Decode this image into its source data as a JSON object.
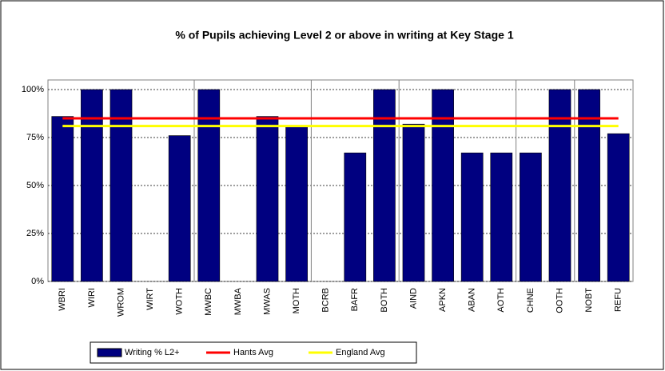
{
  "chart_data": {
    "type": "bar",
    "title": "% of Pupils achieving Level 2 or above in writing at Key Stage 1",
    "categories": [
      "WBRI",
      "WIRI",
      "WROM",
      "WIRT",
      "WOTH",
      "MWBC",
      "MWBA",
      "MWAS",
      "MOTH",
      "BCRB",
      "BAFR",
      "BOTH",
      "AIND",
      "APKN",
      "ABAN",
      "AOTH",
      "CHNE",
      "OOTH",
      "NOBT",
      "REFU"
    ],
    "series": [
      {
        "name": "Writing % L2+",
        "type": "bar",
        "color": "#000080",
        "values": [
          86,
          100,
          100,
          0,
          76,
          100,
          0,
          86,
          81,
          0,
          67,
          100,
          82,
          100,
          67,
          67,
          67,
          100,
          100,
          77
        ]
      },
      {
        "name": "Hants Avg",
        "type": "line",
        "color": "#ff0000",
        "values": [
          85,
          85,
          85,
          85,
          85,
          85,
          85,
          85,
          85,
          85,
          85,
          85,
          85,
          85,
          85,
          85,
          85,
          85,
          85,
          85
        ]
      },
      {
        "name": "England Avg",
        "type": "line",
        "color": "#ffff00",
        "values": [
          81,
          81,
          81,
          81,
          81,
          81,
          81,
          81,
          81,
          81,
          81,
          81,
          81,
          81,
          81,
          81,
          81,
          81,
          81,
          81
        ]
      }
    ],
    "ylim": [
      0,
      100
    ],
    "yticks": [
      {
        "value": 0,
        "label": "0%"
      },
      {
        "value": 25,
        "label": "25%"
      },
      {
        "value": 50,
        "label": "50%"
      },
      {
        "value": 75,
        "label": "75%"
      },
      {
        "value": 100,
        "label": "100%"
      }
    ],
    "grid": true,
    "legend": "bottom"
  }
}
